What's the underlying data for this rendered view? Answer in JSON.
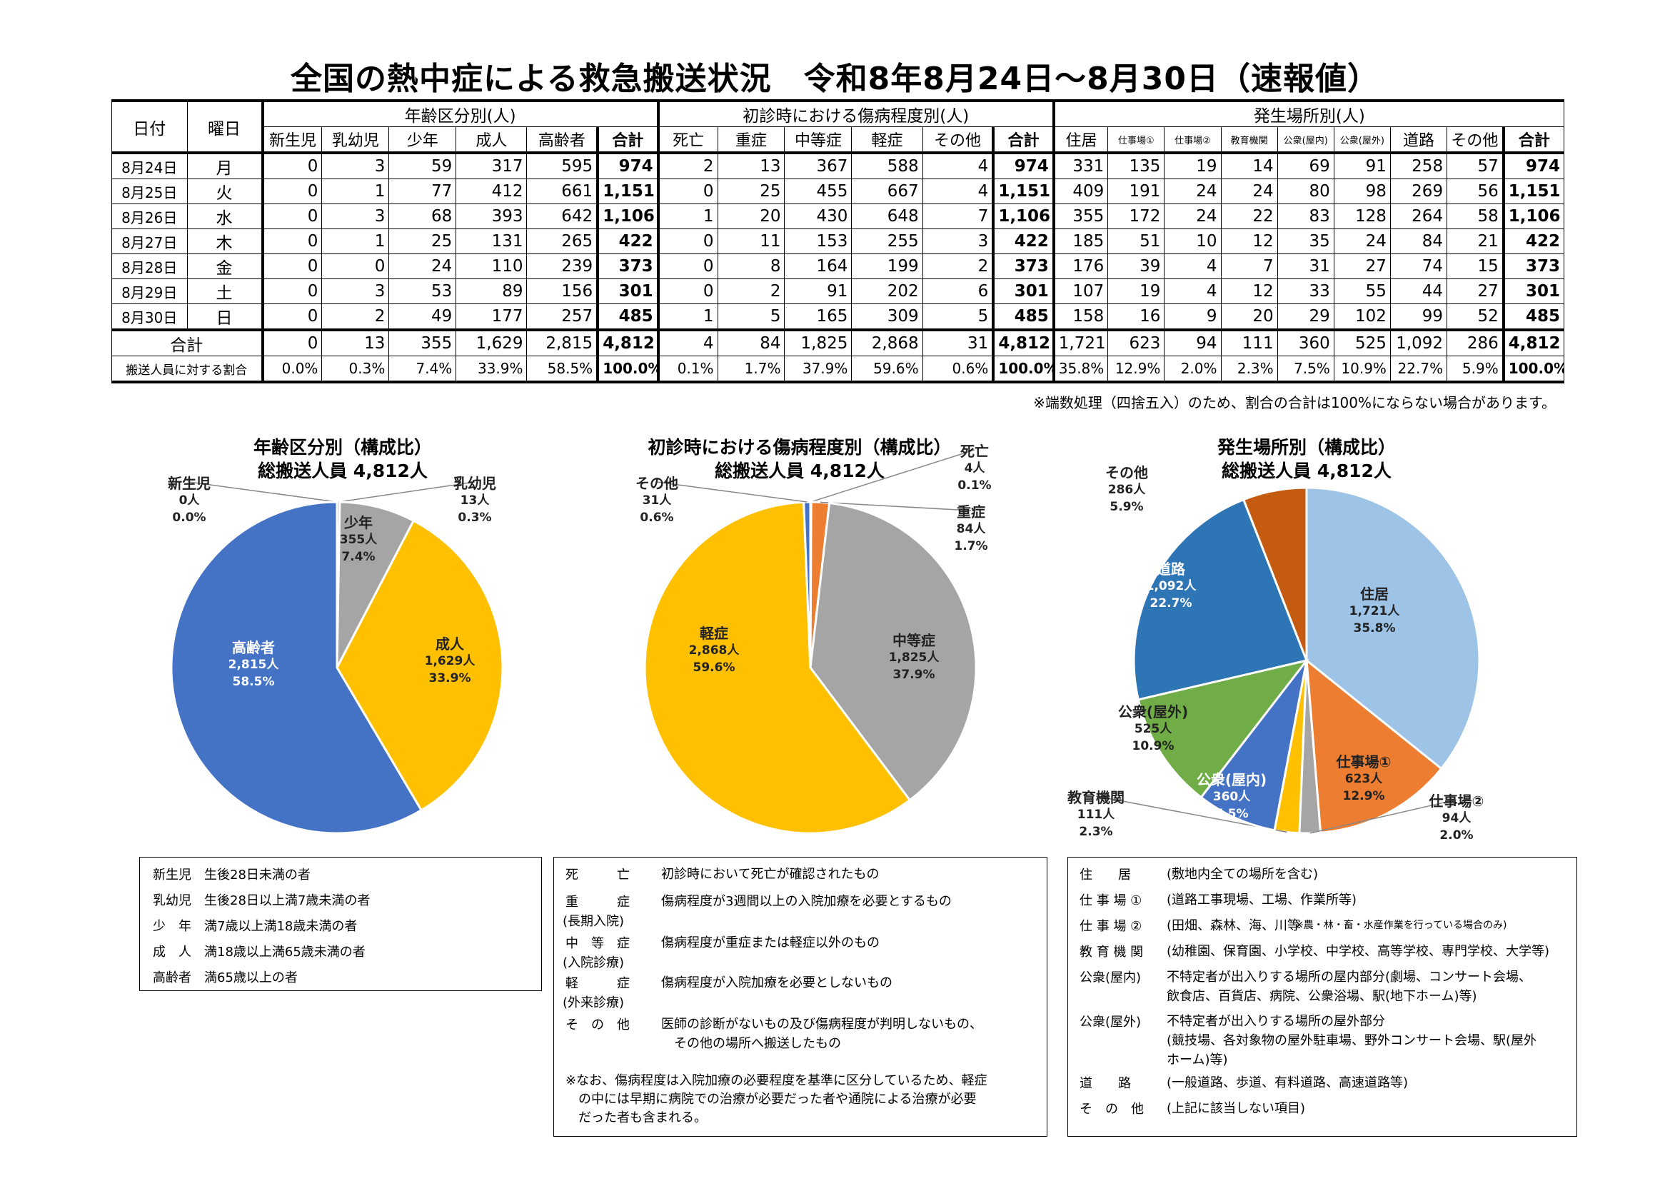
{
  "title": "全国の熱中症による救急搬送状況　令和8年8月24日～8月30日（速報値）",
  "table": {
    "h_date": "日付",
    "h_day": "曜日",
    "group_age": "年齢区分別(人)",
    "group_sev": "初診時における傷病程度別(人)",
    "group_loc": "発生場所別(人)",
    "age_cols": [
      "新生児",
      "乳幼児",
      "少年",
      "成人",
      "高齢者",
      "合計"
    ],
    "sev_cols": [
      "死亡",
      "重症",
      "中等症",
      "軽症",
      "その他",
      "合計"
    ],
    "loc_cols": [
      "住居",
      "仕事場①",
      "仕事場②",
      "教育機関",
      "公衆(屋内)",
      "公衆(屋外)",
      "道路",
      "その他",
      "合計"
    ],
    "rows": [
      {
        "date": "8月24日",
        "day": "月",
        "age": [
          "0",
          "3",
          "59",
          "317",
          "595",
          "974"
        ],
        "sev": [
          "2",
          "13",
          "367",
          "588",
          "4",
          "974"
        ],
        "loc": [
          "331",
          "135",
          "19",
          "14",
          "69",
          "91",
          "258",
          "57",
          "974"
        ]
      },
      {
        "date": "8月25日",
        "day": "火",
        "age": [
          "0",
          "1",
          "77",
          "412",
          "661",
          "1,151"
        ],
        "sev": [
          "0",
          "25",
          "455",
          "667",
          "4",
          "1,151"
        ],
        "loc": [
          "409",
          "191",
          "24",
          "24",
          "80",
          "98",
          "269",
          "56",
          "1,151"
        ]
      },
      {
        "date": "8月26日",
        "day": "水",
        "age": [
          "0",
          "3",
          "68",
          "393",
          "642",
          "1,106"
        ],
        "sev": [
          "1",
          "20",
          "430",
          "648",
          "7",
          "1,106"
        ],
        "loc": [
          "355",
          "172",
          "24",
          "22",
          "83",
          "128",
          "264",
          "58",
          "1,106"
        ]
      },
      {
        "date": "8月27日",
        "day": "木",
        "age": [
          "0",
          "1",
          "25",
          "131",
          "265",
          "422"
        ],
        "sev": [
          "0",
          "11",
          "153",
          "255",
          "3",
          "422"
        ],
        "loc": [
          "185",
          "51",
          "10",
          "12",
          "35",
          "24",
          "84",
          "21",
          "422"
        ]
      },
      {
        "date": "8月28日",
        "day": "金",
        "age": [
          "0",
          "0",
          "24",
          "110",
          "239",
          "373"
        ],
        "sev": [
          "0",
          "8",
          "164",
          "199",
          "2",
          "373"
        ],
        "loc": [
          "176",
          "39",
          "4",
          "7",
          "31",
          "27",
          "74",
          "15",
          "373"
        ]
      },
      {
        "date": "8月29日",
        "day": "土",
        "age": [
          "0",
          "3",
          "53",
          "89",
          "156",
          "301"
        ],
        "sev": [
          "0",
          "2",
          "91",
          "202",
          "6",
          "301"
        ],
        "loc": [
          "107",
          "19",
          "4",
          "12",
          "33",
          "55",
          "44",
          "27",
          "301"
        ]
      },
      {
        "date": "8月30日",
        "day": "日",
        "age": [
          "0",
          "2",
          "49",
          "177",
          "257",
          "485"
        ],
        "sev": [
          "1",
          "5",
          "165",
          "309",
          "5",
          "485"
        ],
        "loc": [
          "158",
          "16",
          "9",
          "20",
          "29",
          "102",
          "99",
          "52",
          "485"
        ]
      }
    ],
    "total": {
      "label": "合計",
      "age": [
        "0",
        "13",
        "355",
        "1,629",
        "2,815",
        "4,812"
      ],
      "sev": [
        "4",
        "84",
        "1,825",
        "2,868",
        "31",
        "4,812"
      ],
      "loc": [
        "1,721",
        "623",
        "94",
        "111",
        "360",
        "525",
        "1,092",
        "286",
        "4,812"
      ]
    },
    "ratio": {
      "label": "搬送人員に対する割合",
      "age": [
        "0.0%",
        "0.3%",
        "7.4%",
        "33.9%",
        "58.5%",
        "100.0%"
      ],
      "sev": [
        "0.1%",
        "1.7%",
        "37.9%",
        "59.6%",
        "0.6%",
        "100.0%"
      ],
      "loc": [
        "35.8%",
        "12.9%",
        "2.0%",
        "2.3%",
        "7.5%",
        "10.9%",
        "22.7%",
        "5.9%",
        "100.0%"
      ]
    }
  },
  "note": "※端数処理（四捨五入）のため、割合の合計は100%にならない場合があります。",
  "chart_data": [
    {
      "type": "pie",
      "title": "年齢区分別（構成比）",
      "subtitle": "総搬送人員 4,812人",
      "slices": [
        {
          "name": "新生児",
          "count_text": "0人",
          "pct_text": "0.0%",
          "value": 0,
          "color": "#a9a9a9"
        },
        {
          "name": "乳幼児",
          "count_text": "13人",
          "pct_text": "0.3%",
          "value": 13,
          "color": "#a9a9a9"
        },
        {
          "name": "少年",
          "count_text": "355人",
          "pct_text": "7.4%",
          "value": 355,
          "color": "#a5a5a5"
        },
        {
          "name": "成人",
          "count_text": "1,629人",
          "pct_text": "33.9%",
          "value": 1629,
          "color": "#ffc000"
        },
        {
          "name": "高齢者",
          "count_text": "2,815人",
          "pct_text": "58.5%",
          "value": 2815,
          "color": "#4472c4"
        }
      ]
    },
    {
      "type": "pie",
      "title": "初診時における傷病程度別（構成比）",
      "subtitle": "総搬送人員 4,812人",
      "slices": [
        {
          "name": "死亡",
          "count_text": "4人",
          "pct_text": "0.1%",
          "value": 4,
          "color": "#404040"
        },
        {
          "name": "重症",
          "count_text": "84人",
          "pct_text": "1.7%",
          "value": 84,
          "color": "#ed7d31"
        },
        {
          "name": "中等症",
          "count_text": "1,825人",
          "pct_text": "37.9%",
          "value": 1825,
          "color": "#a5a5a5"
        },
        {
          "name": "軽症",
          "count_text": "2,868人",
          "pct_text": "59.6%",
          "value": 2868,
          "color": "#ffc000"
        },
        {
          "name": "その他",
          "count_text": "31人",
          "pct_text": "0.6%",
          "value": 31,
          "color": "#4472c4"
        }
      ]
    },
    {
      "type": "pie",
      "title": "発生場所別（構成比）",
      "subtitle": "総搬送人員 4,812人",
      "slices": [
        {
          "name": "住居",
          "count_text": "1,721人",
          "pct_text": "35.8%",
          "value": 1721,
          "color": "#9dc3e6"
        },
        {
          "name": "仕事場①",
          "count_text": "623人",
          "pct_text": "12.9%",
          "value": 623,
          "color": "#ed7d31"
        },
        {
          "name": "仕事場②",
          "count_text": "94人",
          "pct_text": "2.0%",
          "value": 94,
          "color": "#a5a5a5"
        },
        {
          "name": "教育機関",
          "count_text": "111人",
          "pct_text": "2.3%",
          "value": 111,
          "color": "#ffc000"
        },
        {
          "name": "公衆(屋内)",
          "count_text": "360人",
          "pct_text": "7.5%",
          "value": 360,
          "color": "#4472c4"
        },
        {
          "name": "公衆(屋外)",
          "count_text": "525人",
          "pct_text": "10.9%",
          "value": 525,
          "color": "#70ad47"
        },
        {
          "name": "道路",
          "count_text": "1,092人",
          "pct_text": "22.7%",
          "value": 1092,
          "color": "#2e75b6"
        },
        {
          "name": "その他",
          "count_text": "286人",
          "pct_text": "5.9%",
          "value": 286,
          "color": "#c55a11"
        }
      ]
    }
  ],
  "legend_age": [
    {
      "term": "新生児",
      "desc": "生後28日未満の者"
    },
    {
      "term": "乳幼児",
      "desc": "生後28日以上満7歳未満の者"
    },
    {
      "term": "少　年",
      "desc": "満7歳以上満18歳未満の者"
    },
    {
      "term": "成　人",
      "desc": "満18歳以上満65歳未満の者"
    },
    {
      "term": "高齢者",
      "desc": "満65歳以上の者"
    }
  ],
  "legend_sev": [
    {
      "term": "死　　　亡",
      "sub": "",
      "desc": "初診時において死亡が確認されたもの"
    },
    {
      "term": "重　　　症",
      "sub": "(長期入院)",
      "desc": "傷病程度が3週間以上の入院加療を必要とするもの"
    },
    {
      "term": "中　等　症",
      "sub": "(入院診療)",
      "desc": "傷病程度が重症または軽症以外のもの"
    },
    {
      "term": "軽　　　症",
      "sub": "(外来診療)",
      "desc": "傷病程度が入院加療を必要としないもの"
    },
    {
      "term": "そ　の　他",
      "sub": "",
      "desc": "医師の診断がないもの及び傷病程度が判明しないもの、\n　その他の場所へ搬送したもの"
    }
  ],
  "legend_sev_note": "※なお、傷病程度は入院加療の必要程度を基準に区分しているため、軽症\n　の中には早期に病院での治療が必要だった者や通院による治療が必要\n　だった者も含まれる。",
  "legend_loc": [
    {
      "term": "住　　居",
      "desc": "(敷地内全ての場所を含む)"
    },
    {
      "term": "仕 事 場 ①",
      "desc": "(道路工事現場、工場、作業所等)"
    },
    {
      "term": "仕 事 場 ②",
      "desc": "(田畑、森林、海、川等",
      "small": "※農・林・畜・水産作業を行っている場合のみ)"
    },
    {
      "term": "教 育 機 関",
      "desc": "(幼稚園、保育園、小学校、中学校、高等学校、専門学校、大学等)"
    },
    {
      "term": "公衆(屋内)",
      "desc": "不特定者が出入りする場所の屋内部分(劇場、コンサート会場、\n飲食店、百貨店、病院、公衆浴場、駅(地下ホーム)等)"
    },
    {
      "term": "公衆(屋外)",
      "desc": "不特定者が出入りする場所の屋外部分\n(競技場、各対象物の屋外駐車場、野外コンサート会場、駅(屋外\nホーム)等)"
    },
    {
      "term": "道　　路",
      "desc": "(一般道路、歩道、有料道路、高速道路等)"
    },
    {
      "term": "そ　の　他",
      "desc": "(上記に該当しない項目)"
    }
  ]
}
